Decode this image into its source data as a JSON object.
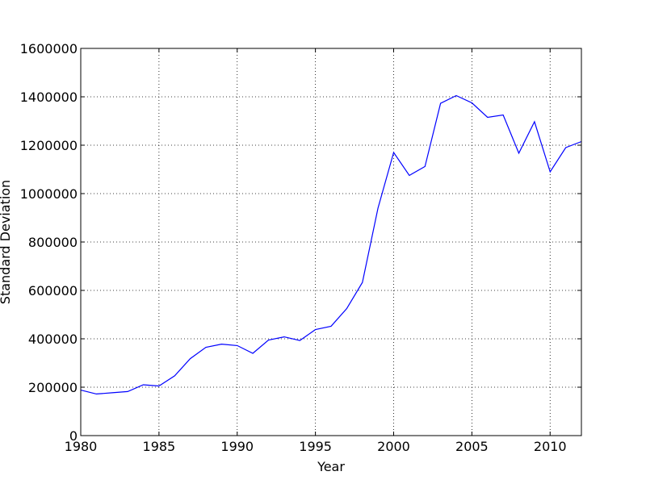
{
  "chart_data": {
    "type": "line",
    "title": "",
    "xlabel": "Year",
    "ylabel": "Standard Deviation",
    "xlim": [
      1980,
      2012
    ],
    "ylim": [
      0,
      1600000
    ],
    "xticks": [
      1980,
      1985,
      1990,
      1995,
      2000,
      2005,
      2010
    ],
    "yticks": [
      0,
      200000,
      400000,
      600000,
      800000,
      1000000,
      1200000,
      1400000,
      1600000
    ],
    "grid": true,
    "line_color": "#0000ff",
    "series": [
      {
        "x": [
          1980,
          1981,
          1982,
          1983,
          1984,
          1985,
          1986,
          1987,
          1988,
          1989,
          1990,
          1991,
          1992,
          1993,
          1994,
          1995,
          1996,
          1997,
          1998,
          1999,
          2000,
          2001,
          2002,
          2003,
          2004,
          2005,
          2006,
          2007,
          2008,
          2009,
          2010,
          2011,
          2012
        ],
        "values": [
          188000,
          172000,
          177000,
          182000,
          210000,
          205000,
          247000,
          318000,
          365000,
          378000,
          372000,
          340000,
          395000,
          408000,
          393000,
          438000,
          452000,
          525000,
          633000,
          940000,
          1170000,
          1075000,
          1112000,
          1373000,
          1405000,
          1375000,
          1315000,
          1325000,
          1167000,
          1297000,
          1090000,
          1190000,
          1215000
        ]
      }
    ]
  }
}
